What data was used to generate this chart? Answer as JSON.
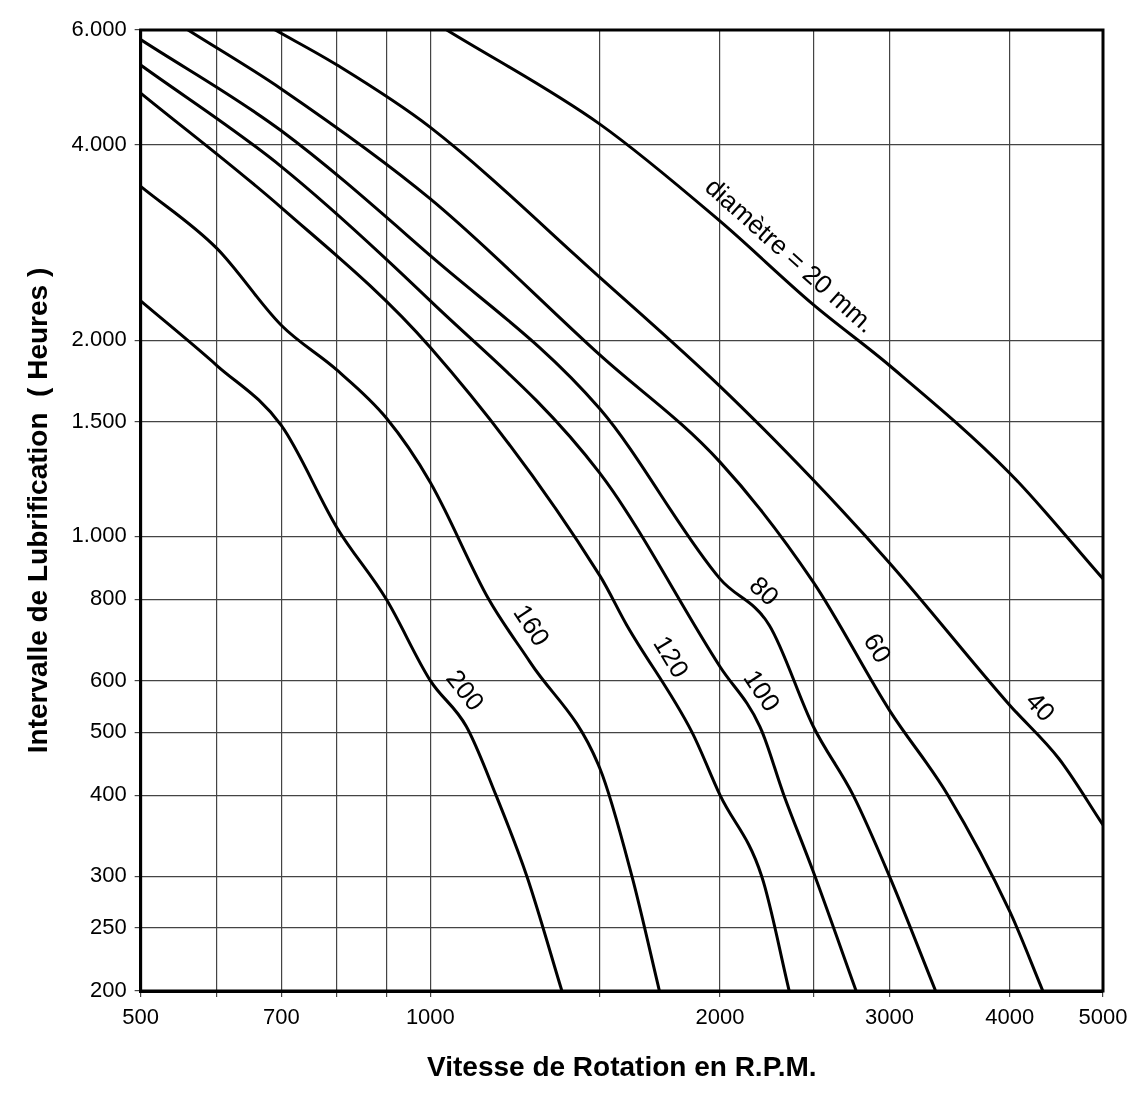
{
  "chart_data": {
    "type": "line",
    "xlabel": "Vitesse de Rotation en R.P.M.",
    "ylabel": "Intervalle de Lubrification  ( Heures )",
    "log": "xy",
    "grid": true,
    "legend": false,
    "marker": "none",
    "line_style": "solid",
    "xlim": [
      500,
      5000
    ],
    "ylim": [
      200,
      6000
    ],
    "xticks": [
      500,
      {
        "value": 600,
        "label": null
      },
      700,
      {
        "value": 800,
        "label": null
      },
      {
        "value": 900,
        "label": null
      },
      1000,
      {
        "value": 1500,
        "label": null
      },
      2000,
      {
        "value": 2500,
        "label": null
      },
      3000,
      4000,
      5000
    ],
    "yticks": [
      200,
      250,
      300,
      400,
      500,
      600,
      800,
      {
        "value": 1000,
        "label": "1.000"
      },
      {
        "value": 1500,
        "label": "1.500"
      },
      {
        "value": 2000,
        "label": "2.000"
      },
      {
        "value": 4000,
        "label": "4.000"
      },
      {
        "value": 6000,
        "label": "6.000"
      }
    ],
    "series": [
      {
        "name": "diamètre = 20 mm.",
        "color": "#000000",
        "x": [
          1040,
          1500,
          2000,
          2500,
          3000,
          4000,
          5000
        ],
        "values": [
          6000,
          4300,
          3050,
          2270,
          1830,
          1250,
          860
        ]
      },
      {
        "name": "40",
        "color": "#000000",
        "x": [
          690,
          800,
          1000,
          1500,
          2000,
          2500,
          3000,
          4000,
          4500,
          5000
        ],
        "values": [
          6000,
          5300,
          4250,
          2500,
          1700,
          1220,
          910,
          550,
          455,
          360
        ]
      },
      {
        "name": "60",
        "color": "#000000",
        "x": [
          560,
          700,
          1000,
          1500,
          2000,
          2500,
          3000,
          3450,
          4000,
          4330
        ],
        "values": [
          6000,
          4870,
          3300,
          1900,
          1300,
          850,
          540,
          400,
          265,
          200
        ]
      },
      {
        "name": "80",
        "color": "#000000",
        "x": [
          500,
          700,
          1000,
          1500,
          2000,
          2250,
          2500,
          2750,
          3000,
          3350
        ],
        "values": [
          5800,
          4200,
          2700,
          1570,
          860,
          730,
          510,
          400,
          300,
          200
        ]
      },
      {
        "name": "100",
        "color": "#000000",
        "x": [
          500,
          700,
          1000,
          1500,
          2000,
          2200,
          2330,
          2500,
          2770
        ],
        "values": [
          5300,
          3700,
          2300,
          1250,
          630,
          510,
          400,
          305,
          200
        ]
      },
      {
        "name": "120",
        "color": "#000000",
        "x": [
          500,
          700,
          1000,
          1500,
          1600,
          1870,
          2000,
          2210,
          2360
        ],
        "values": [
          4800,
          3200,
          1950,
          870,
          730,
          500,
          400,
          300,
          200
        ]
      },
      {
        "name": "160",
        "color": "#000000",
        "x": [
          500,
          600,
          700,
          800,
          900,
          1000,
          1150,
          1270,
          1500,
          1620,
          1730
        ],
        "values": [
          3450,
          2770,
          2110,
          1800,
          1520,
          1210,
          800,
          640,
          440,
          300,
          200
        ]
      },
      {
        "name": "200",
        "color": "#000000",
        "x": [
          500,
          600,
          700,
          800,
          900,
          1000,
          1090,
          1170,
          1260,
          1370
        ],
        "values": [
          2300,
          1830,
          1480,
          1030,
          800,
          600,
          510,
          400,
          300,
          200
        ]
      }
    ]
  }
}
